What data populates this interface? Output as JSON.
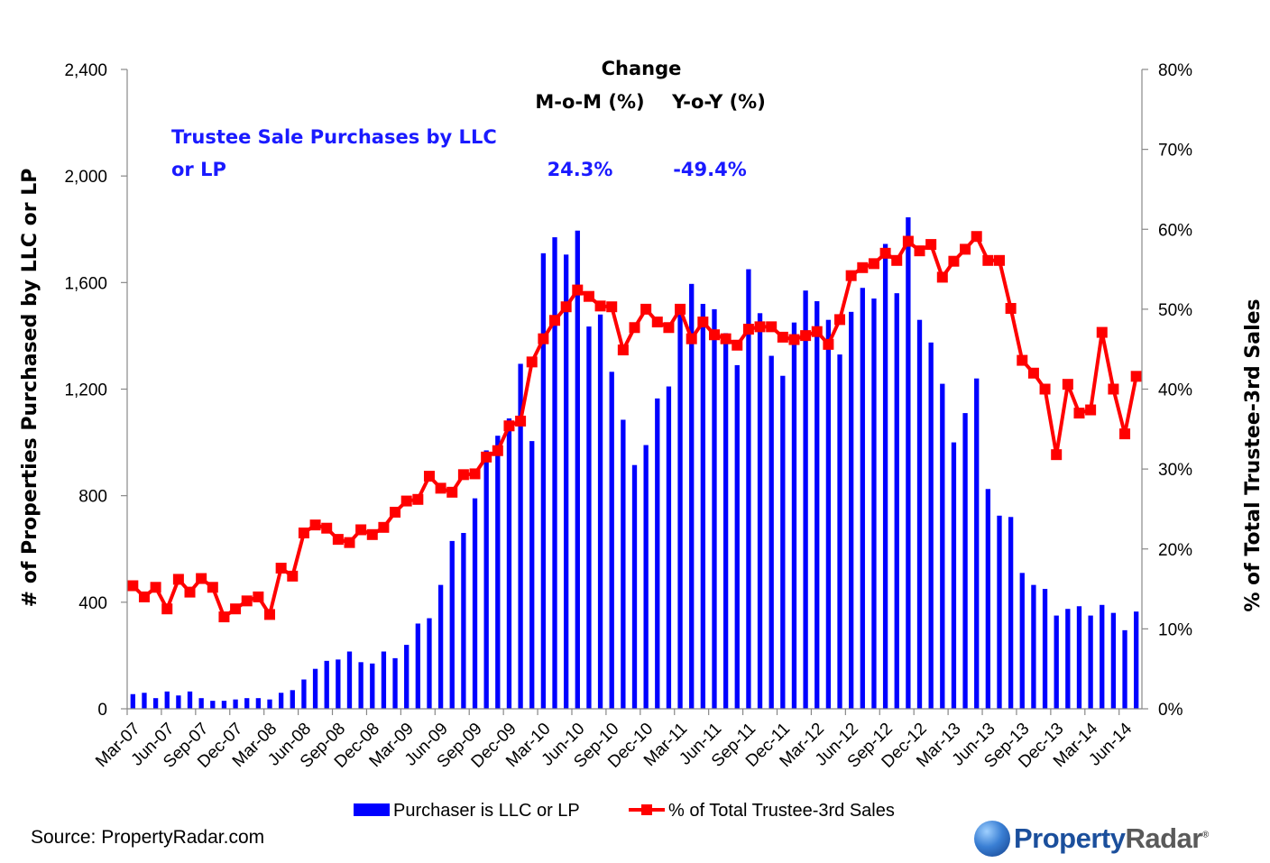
{
  "chart_data": {
    "type": "bar+line",
    "y_left_label": "# of Properties Purchased by LLC or LP",
    "y_right_label": "% of Total Trustee-3rd Sales",
    "y_left_ticks": [
      "0",
      "400",
      "800",
      "1,200",
      "1,600",
      "2,000",
      "2,400"
    ],
    "y_right_ticks": [
      "0%",
      "10%",
      "20%",
      "30%",
      "40%",
      "50%",
      "60%",
      "70%",
      "80%"
    ],
    "y_left_range": [
      0,
      2400
    ],
    "y_right_range": [
      0,
      80
    ],
    "x_tick_labels": [
      "Mar-07",
      "Jun-07",
      "Sep-07",
      "Dec-07",
      "Mar-08",
      "Jun-08",
      "Sep-08",
      "Dec-08",
      "Mar-09",
      "Jun-09",
      "Sep-09",
      "Dec-09",
      "Mar-10",
      "Jun-10",
      "Sep-10",
      "Dec-10",
      "Mar-11",
      "Jun-11",
      "Sep-11",
      "Dec-11",
      "Mar-12",
      "Jun-12",
      "Sep-12",
      "Dec-12",
      "Mar-13",
      "Jun-13",
      "Sep-13",
      "Dec-13",
      "Mar-14",
      "Jun-14"
    ],
    "start_month": "Mar-07",
    "series": [
      {
        "name": "Purchaser is LLC or LP",
        "kind": "bar",
        "axis": "left",
        "color": "#0000ff",
        "values": [
          55,
          60,
          40,
          65,
          50,
          65,
          40,
          30,
          30,
          35,
          40,
          40,
          35,
          60,
          70,
          110,
          150,
          180,
          185,
          215,
          175,
          170,
          215,
          190,
          240,
          320,
          340,
          465,
          630,
          660,
          790,
          970,
          1025,
          1090,
          1295,
          1005,
          1710,
          1770,
          1705,
          1795,
          1435,
          1480,
          1265,
          1085,
          915,
          990,
          1165,
          1210,
          1480,
          1595,
          1520,
          1500,
          1410,
          1290,
          1650,
          1485,
          1325,
          1250,
          1450,
          1570,
          1530,
          1460,
          1330,
          1490,
          1580,
          1540,
          1745,
          1560,
          1845,
          1460,
          1375,
          1220,
          1000,
          1110,
          1240,
          825,
          725,
          720,
          510,
          465,
          450,
          350,
          375,
          385,
          350,
          390,
          360,
          295,
          365
        ]
      },
      {
        "name": "% of Total Trustee-3rd Sales",
        "kind": "line",
        "axis": "right",
        "color": "#ff0000",
        "values": [
          15.4,
          14,
          15.2,
          12.5,
          16.2,
          14.6,
          16.3,
          15.2,
          11.5,
          12.5,
          13.5,
          14,
          11.8,
          17.6,
          16.6,
          22,
          23,
          22.6,
          21.2,
          20.8,
          22.4,
          21.8,
          22.7,
          24.6,
          26,
          26.2,
          29.1,
          27.6,
          27.1,
          29.3,
          29.4,
          31.5,
          32.3,
          35.4,
          36,
          43.4,
          46.3,
          48.6,
          50.3,
          52.4,
          51.6,
          50.4,
          50.3,
          44.9,
          47.7,
          50,
          48.4,
          47.7,
          50,
          46.3,
          48.4,
          46.8,
          46.3,
          45.5,
          47.5,
          47.8,
          47.8,
          46.5,
          46.2,
          46.7,
          47.2,
          45.6,
          48.7,
          54.2,
          55.2,
          55.7,
          57,
          56.1,
          58.5,
          57.3,
          58.1,
          54,
          56,
          57.5,
          59.1,
          56.1,
          56.1,
          50.1,
          43.6,
          42,
          40,
          31.8,
          40.6,
          37,
          37.4,
          47.1,
          40,
          34.4,
          41.6
        ]
      }
    ],
    "annotation": {
      "change_title": "Change",
      "mom_header": "M-o-M (%)",
      "yoy_header": "Y-o-Y (%)",
      "series_label_line1": "Trustee Sale Purchases by LLC",
      "series_label_line2": "or LP",
      "mom_value": "24.3%",
      "yoy_value": "-49.4%"
    },
    "legend": {
      "bar_label": "Purchaser is LLC or LP",
      "line_label": "% of Total Trustee-3rd Sales",
      "placement": "bottom"
    }
  },
  "footer": {
    "source": "Source: PropertyRadar.com",
    "logo_part1": "Property",
    "logo_part2": "Radar",
    "logo_mark": "®"
  },
  "colors": {
    "bar": "#0000ff",
    "line": "#ff0000",
    "annotation_blue": "#1a1aff"
  }
}
